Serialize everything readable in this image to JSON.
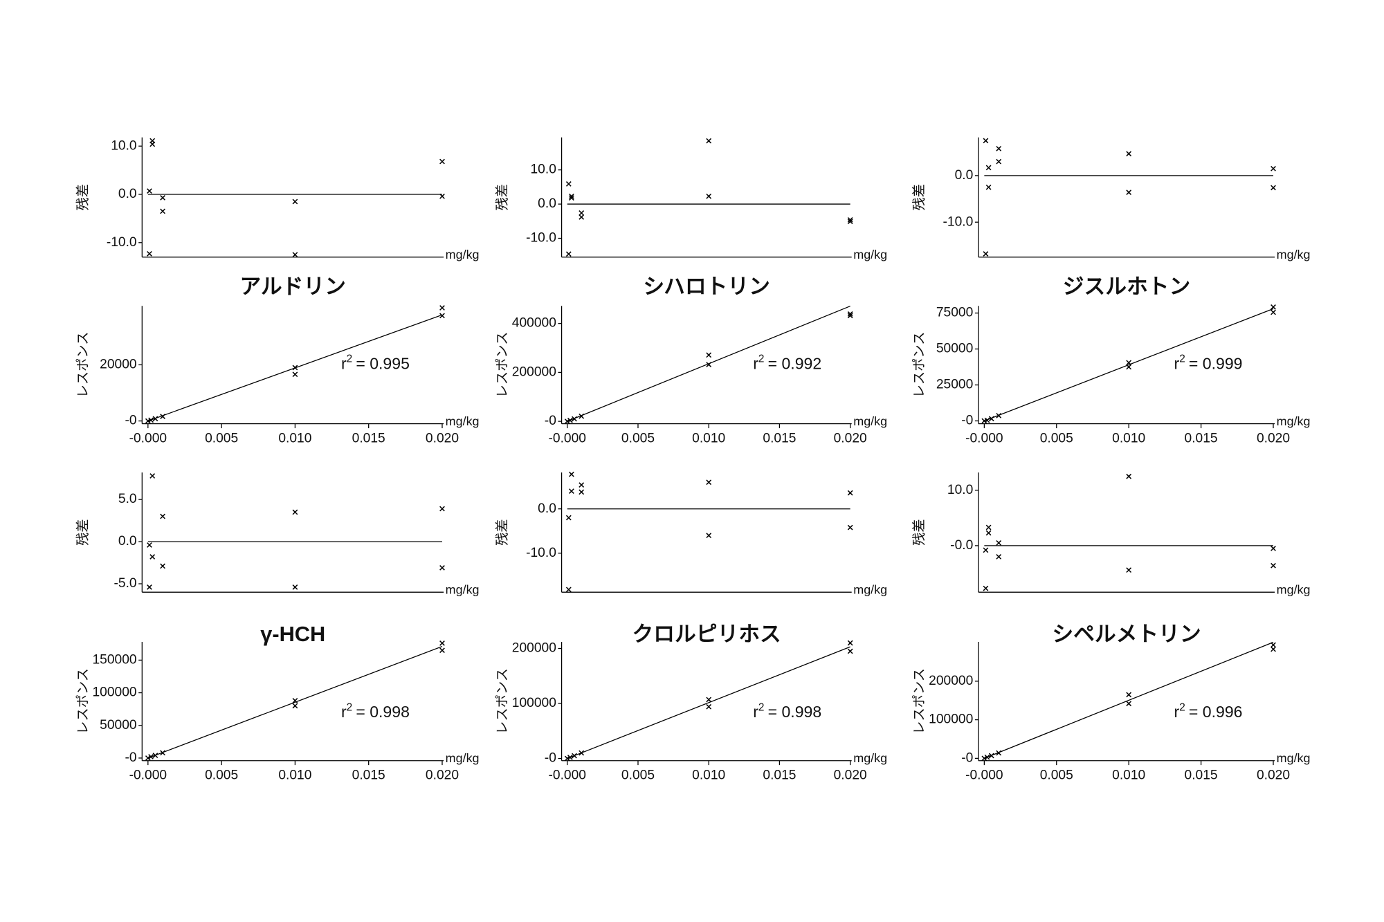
{
  "chart_data": [
    {
      "type": "scatter",
      "ylabel": "残差",
      "xlabel": "mg/kg",
      "marker_color": "#000000",
      "x": [
        0.0003,
        0.0003,
        0.0001,
        0.001,
        0.001,
        0.0001,
        0.01,
        0.01,
        0.02,
        0.02
      ],
      "values": [
        11.1,
        10.4,
        0.7,
        -0.7,
        -3.5,
        -12.3,
        -1.5,
        -12.5,
        6.8,
        -0.4
      ],
      "fit": {
        "x": [
          0,
          0.02
        ],
        "y": [
          0,
          0
        ]
      },
      "xlim": [
        -0.0004,
        0.0201
      ],
      "ylim": [
        -13,
        11.8
      ],
      "yticks": [
        {
          "value": 10,
          "label": "10.0"
        },
        {
          "value": 0,
          "label": "0.0"
        },
        {
          "value": -10,
          "label": "-10.0"
        }
      ]
    },
    {
      "type": "scatter",
      "title": "アルドリン",
      "ylabel": "レスポンス",
      "xlabel": "mg/kg",
      "marker_color": "#000000",
      "x": [
        0,
        0.0002,
        0.0005,
        0.001,
        0.01,
        0.01,
        0.02,
        0.02
      ],
      "values": [
        0,
        300,
        800,
        1600,
        19000,
        16600,
        40300,
        37500
      ],
      "fit": {
        "x": [
          0,
          0.02
        ],
        "y": [
          0,
          37800
        ]
      },
      "annotation": {
        "symbol": "r",
        "superscript": "2",
        "text": "= 0.995"
      },
      "xlim": [
        -0.0004,
        0.0201
      ],
      "ylim": [
        -1000,
        41000
      ],
      "yticks": [
        {
          "value": 0,
          "label": "-0"
        },
        20000
      ],
      "xticks": [
        {
          "value": 0,
          "label": "-0.000"
        },
        0.005,
        {
          "value": 0.01,
          "label": "0.010"
        },
        0.015,
        {
          "value": 0.02,
          "label": "0.020"
        }
      ]
    },
    {
      "type": "scatter",
      "ylabel": "残差",
      "xlabel": "mg/kg",
      "marker_color": "#000000",
      "x": [
        0.0003,
        0.0003,
        0.0001,
        0.001,
        0.001,
        0.0001,
        0.01,
        0.01,
        0.02,
        0.02
      ],
      "values": [
        2.3,
        1.8,
        5.9,
        -2.6,
        -3.8,
        -14.6,
        18.5,
        2.3,
        -4.6,
        -5.1
      ],
      "fit": {
        "x": [
          0,
          0.02
        ],
        "y": [
          0,
          0
        ]
      },
      "xlim": [
        -0.0004,
        0.0201
      ],
      "ylim": [
        -15.5,
        19.5
      ],
      "yticks": [
        {
          "value": 10,
          "label": "10.0"
        },
        {
          "value": 0,
          "label": "0.0"
        },
        {
          "value": -10,
          "label": "-10.0"
        }
      ]
    },
    {
      "type": "scatter",
      "title": "シハロトリン",
      "ylabel": "レスポンス",
      "xlabel": "mg/kg",
      "marker_color": "#000000",
      "x": [
        0,
        0.0002,
        0.0005,
        0.001,
        0.01,
        0.01,
        0.02,
        0.02
      ],
      "values": [
        0,
        4000,
        10000,
        21000,
        271000,
        232000,
        439000,
        432000
      ],
      "fit": {
        "x": [
          0,
          0.02
        ],
        "y": [
          0,
          471000
        ]
      },
      "annotation": {
        "symbol": "r",
        "superscript": "2",
        "text": "= 0.992"
      },
      "xlim": [
        -0.0004,
        0.0201
      ],
      "ylim": [
        -10000,
        472000
      ],
      "yticks": [
        {
          "value": 0,
          "label": "-0"
        },
        200000,
        400000
      ],
      "xticks": [
        {
          "value": 0,
          "label": "-0.000"
        },
        0.005,
        {
          "value": 0.01,
          "label": "0.010"
        },
        0.015,
        {
          "value": 0.02,
          "label": "0.020"
        }
      ]
    },
    {
      "type": "scatter",
      "ylabel": "残差",
      "xlabel": "mg/kg",
      "marker_color": "#000000",
      "x": [
        0.0003,
        0.0003,
        0.0001,
        0.001,
        0.001,
        0.0001,
        0.01,
        0.01,
        0.02,
        0.02
      ],
      "values": [
        1.7,
        -2.5,
        7.5,
        5.8,
        3.0,
        -16.8,
        4.7,
        -3.6,
        1.5,
        -2.6
      ],
      "fit": {
        "x": [
          0,
          0.02
        ],
        "y": [
          0,
          0
        ]
      },
      "xlim": [
        -0.0004,
        0.0201
      ],
      "ylim": [
        -17.5,
        8.2
      ],
      "yticks": [
        {
          "value": 0,
          "label": "0.0"
        },
        {
          "value": -10,
          "label": "-10.0"
        }
      ]
    },
    {
      "type": "scatter",
      "title": "ジスルホトン",
      "ylabel": "レスポンス",
      "xlabel": "mg/kg",
      "marker_color": "#000000",
      "x": [
        0,
        0.0002,
        0.0005,
        0.001,
        0.01,
        0.01,
        0.02,
        0.02
      ],
      "values": [
        0,
        400,
        1500,
        3700,
        40500,
        37500,
        79200,
        75500
      ],
      "fit": {
        "x": [
          0,
          0.02
        ],
        "y": [
          0,
          78000
        ]
      },
      "annotation": {
        "symbol": "r",
        "superscript": "2",
        "text": "= 0.999"
      },
      "xlim": [
        -0.0004,
        0.0201
      ],
      "ylim": [
        -2000,
        80000
      ],
      "yticks": [
        {
          "value": 0,
          "label": "-0"
        },
        25000,
        50000,
        75000
      ],
      "xticks": [
        {
          "value": 0,
          "label": "-0.000"
        },
        0.005,
        {
          "value": 0.01,
          "label": "0.010"
        },
        0.015,
        {
          "value": 0.02,
          "label": "0.020"
        }
      ]
    },
    {
      "type": "scatter",
      "ylabel": "残差",
      "xlabel": "mg/kg",
      "marker_color": "#000000",
      "x": [
        0.0003,
        0.0003,
        0.0001,
        0.001,
        0.001,
        0.0001,
        0.01,
        0.01,
        0.02,
        0.02
      ],
      "values": [
        7.8,
        -1.8,
        -0.4,
        3.0,
        -2.9,
        -5.4,
        3.5,
        -5.4,
        3.9,
        -3.1
      ],
      "fit": {
        "x": [
          0,
          0.02
        ],
        "y": [
          0,
          0
        ]
      },
      "xlim": [
        -0.0004,
        0.0201
      ],
      "ylim": [
        -6,
        8.2
      ],
      "yticks": [
        {
          "value": 5,
          "label": "5.0"
        },
        {
          "value": 0,
          "label": "0.0"
        },
        {
          "value": -5,
          "label": "-5.0"
        }
      ]
    },
    {
      "type": "scatter",
      "title": "γ-HCH",
      "ylabel": "レスポンス",
      "xlabel": "mg/kg",
      "marker_color": "#000000",
      "x": [
        0,
        0.0002,
        0.0005,
        0.001,
        0.01,
        0.01,
        0.02,
        0.02
      ],
      "values": [
        0,
        2000,
        4000,
        8000,
        88000,
        80000,
        176000,
        165000
      ],
      "fit": {
        "x": [
          0,
          0.02
        ],
        "y": [
          0,
          171000
        ]
      },
      "annotation": {
        "symbol": "r",
        "superscript": "2",
        "text": "= 0.998"
      },
      "xlim": [
        -0.0004,
        0.0201
      ],
      "ylim": [
        -4000,
        178000
      ],
      "yticks": [
        {
          "value": 0,
          "label": "-0"
        },
        50000,
        100000,
        150000
      ],
      "xticks": [
        {
          "value": 0,
          "label": "-0.000"
        },
        0.005,
        {
          "value": 0.01,
          "label": "0.010"
        },
        0.015,
        {
          "value": 0.02,
          "label": "0.020"
        }
      ]
    },
    {
      "type": "scatter",
      "ylabel": "残差",
      "xlabel": "mg/kg",
      "marker_color": "#000000",
      "x": [
        0.0003,
        0.0003,
        0.0001,
        0.001,
        0.001,
        0.0001,
        0.01,
        0.01,
        0.02,
        0.02
      ],
      "values": [
        7.8,
        4.0,
        -2.0,
        5.4,
        3.8,
        -18.2,
        6.0,
        -6.0,
        3.6,
        -4.2
      ],
      "fit": {
        "x": [
          0,
          0.02
        ],
        "y": [
          0,
          0
        ]
      },
      "xlim": [
        -0.0004,
        0.0201
      ],
      "ylim": [
        -18.8,
        8.2
      ],
      "yticks": [
        {
          "value": 0,
          "label": "0.0"
        },
        {
          "value": -10,
          "label": "-10.0"
        }
      ]
    },
    {
      "type": "scatter",
      "title": "クロルピリホス",
      "ylabel": "レスポンス",
      "xlabel": "mg/kg",
      "marker_color": "#000000",
      "x": [
        0,
        0.0002,
        0.0005,
        0.001,
        0.01,
        0.01,
        0.02,
        0.02
      ],
      "values": [
        0,
        2000,
        5000,
        10000,
        107000,
        94000,
        210000,
        195000
      ],
      "fit": {
        "x": [
          0,
          0.02
        ],
        "y": [
          0,
          203000
        ]
      },
      "annotation": {
        "symbol": "r",
        "superscript": "2",
        "text": "= 0.998"
      },
      "xlim": [
        -0.0004,
        0.0201
      ],
      "ylim": [
        -4000,
        212000
      ],
      "yticks": [
        {
          "value": 0,
          "label": "-0"
        },
        100000,
        200000
      ],
      "xticks": [
        {
          "value": 0,
          "label": "-0.000"
        },
        0.005,
        {
          "value": 0.01,
          "label": "0.010"
        },
        0.015,
        {
          "value": 0.02,
          "label": "0.020"
        }
      ]
    },
    {
      "type": "scatter",
      "ylabel": "残差",
      "xlabel": "mg/kg",
      "marker_color": "#000000",
      "x": [
        0.0003,
        0.0003,
        0.0001,
        0.001,
        0.001,
        0.0001,
        0.01,
        0.01,
        0.02,
        0.02
      ],
      "values": [
        3.3,
        2.3,
        -0.8,
        0.5,
        -2.0,
        -7.7,
        12.5,
        -4.4,
        -0.5,
        -3.6
      ],
      "fit": {
        "x": [
          0,
          0.02
        ],
        "y": [
          0,
          0
        ]
      },
      "xlim": [
        -0.0004,
        0.0201
      ],
      "ylim": [
        -8.4,
        13.2
      ],
      "yticks": [
        {
          "value": 10,
          "label": "10.0"
        },
        {
          "value": 0,
          "label": "-0.0"
        }
      ]
    },
    {
      "type": "scatter",
      "title": "シペルメトリン",
      "ylabel": "レスポンス",
      "xlabel": "mg/kg",
      "marker_color": "#000000",
      "x": [
        0,
        0.0002,
        0.0005,
        0.001,
        0.01,
        0.01,
        0.02,
        0.02
      ],
      "values": [
        0,
        3000,
        7000,
        14000,
        165000,
        142000,
        294000,
        283000
      ],
      "fit": {
        "x": [
          0,
          0.02
        ],
        "y": [
          0,
          301000
        ]
      },
      "annotation": {
        "symbol": "r",
        "superscript": "2",
        "text": "= 0.996"
      },
      "xlim": [
        -0.0004,
        0.0201
      ],
      "ylim": [
        -6000,
        302000
      ],
      "yticks": [
        {
          "value": 0,
          "label": "-0"
        },
        100000,
        200000
      ],
      "xticks": [
        {
          "value": 0,
          "label": "-0.000"
        },
        0.005,
        {
          "value": 0.01,
          "label": "0.010"
        },
        0.015,
        {
          "value": 0.02,
          "label": "0.020"
        }
      ]
    }
  ]
}
